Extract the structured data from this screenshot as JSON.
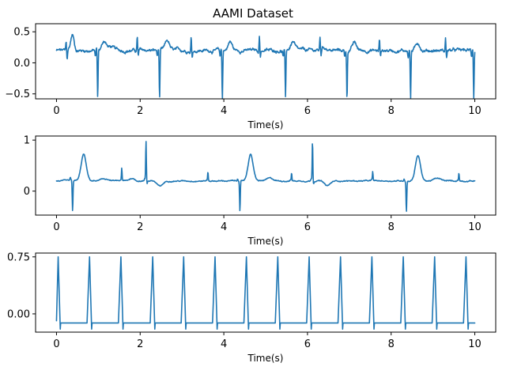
{
  "figure": {
    "title": "AAMI Dataset"
  },
  "colors": {
    "line": "#1f77b4",
    "axes": "#000000",
    "background": "#ffffff"
  },
  "chart_data": [
    {
      "type": "line",
      "title": "AAMI Dataset",
      "xlabel": "Time(s)",
      "ylabel": "",
      "xlim": [
        -0.5,
        10.5
      ],
      "ylim": [
        -0.58,
        0.63
      ],
      "xticks": [
        0,
        2,
        4,
        6,
        8,
        10
      ],
      "yticks": [
        0.5,
        0.0,
        -0.5
      ],
      "ytick_labels": [
        "0.5",
        "0.0",
        "−0.5"
      ],
      "grid": false,
      "baseline": 0.2,
      "noise": 0.03,
      "beats": [
        {
          "t": 0.23,
          "q": -0.01,
          "r": 0.32,
          "s": -0.15
        },
        {
          "t": 0.96,
          "q": -0.1,
          "r": 0.24,
          "s": -0.78
        },
        {
          "t": 1.93,
          "q": -0.02,
          "r": 0.43,
          "s": -0.1
        },
        {
          "t": 2.44,
          "q": -0.1,
          "r": 0.22,
          "s": -0.78
        },
        {
          "t": 3.22,
          "q": -0.02,
          "r": 0.42,
          "s": -0.1
        },
        {
          "t": 3.94,
          "q": -0.1,
          "r": 0.22,
          "s": -0.78
        },
        {
          "t": 4.85,
          "q": -0.02,
          "r": 0.45,
          "s": -0.1
        },
        {
          "t": 5.45,
          "q": -0.1,
          "r": 0.2,
          "s": -0.78
        },
        {
          "t": 6.3,
          "q": -0.02,
          "r": 0.4,
          "s": -0.1
        },
        {
          "t": 6.92,
          "q": -0.1,
          "r": 0.2,
          "s": -0.78
        },
        {
          "t": 7.72,
          "q": -0.02,
          "r": 0.38,
          "s": -0.1
        },
        {
          "t": 8.44,
          "q": -0.1,
          "r": 0.22,
          "s": -0.78
        },
        {
          "t": 9.3,
          "q": -0.02,
          "r": 0.4,
          "s": -0.1
        },
        {
          "t": 9.95,
          "q": -0.1,
          "r": 0.25,
          "s": -0.75
        }
      ],
      "waves": [
        {
          "t": 0.38,
          "a": 0.25,
          "w": 0.04
        },
        {
          "t": 1.14,
          "a": 0.15,
          "w": 0.05
        },
        {
          "t": 2.65,
          "a": 0.15,
          "w": 0.05
        },
        {
          "t": 4.15,
          "a": 0.14,
          "w": 0.05
        },
        {
          "t": 5.65,
          "a": 0.14,
          "w": 0.05
        },
        {
          "t": 7.12,
          "a": 0.12,
          "w": 0.05
        },
        {
          "t": 8.64,
          "a": 0.12,
          "w": 0.05
        },
        {
          "t": 1.3,
          "a": 0.06,
          "w": 0.07
        },
        {
          "t": 6.4,
          "a": 0.05,
          "w": 0.07
        }
      ]
    },
    {
      "type": "line",
      "title": "",
      "xlabel": "Time(s)",
      "ylabel": "",
      "xlim": [
        -0.5,
        10.5
      ],
      "ylim": [
        -0.47,
        1.08
      ],
      "xticks": [
        0,
        2,
        4,
        6,
        8,
        10
      ],
      "yticks": [
        1,
        0
      ],
      "ytick_labels": [
        "1",
        "0"
      ],
      "grid": false,
      "baseline": 0.2,
      "noise": 0.012,
      "beats": [
        {
          "t": 0.36,
          "q": 0.05,
          "r": 0.2,
          "s": -0.6
        },
        {
          "t": 1.56,
          "q": 0.02,
          "r": 0.45,
          "s": 0.0
        },
        {
          "t": 2.14,
          "q": 0.05,
          "r": 1.0,
          "s": -0.05
        },
        {
          "t": 3.62,
          "q": 0.02,
          "r": 0.38,
          "s": 0.0
        },
        {
          "t": 4.36,
          "q": 0.05,
          "r": 0.2,
          "s": -0.6
        },
        {
          "t": 5.62,
          "q": 0.02,
          "r": 0.36,
          "s": 0.0
        },
        {
          "t": 6.12,
          "q": 0.05,
          "r": 1.0,
          "s": -0.05
        },
        {
          "t": 7.56,
          "q": 0.02,
          "r": 0.38,
          "s": 0.0
        },
        {
          "t": 8.34,
          "q": 0.05,
          "r": 0.2,
          "s": -0.6
        },
        {
          "t": 9.62,
          "q": 0.02,
          "r": 0.36,
          "s": 0.0
        }
      ],
      "waves": [
        {
          "t": 0.65,
          "a": 0.52,
          "w": 0.06
        },
        {
          "t": 4.64,
          "a": 0.52,
          "w": 0.06
        },
        {
          "t": 8.64,
          "a": 0.5,
          "w": 0.06
        },
        {
          "t": 1.15,
          "a": 0.04,
          "w": 0.08
        },
        {
          "t": 1.8,
          "a": 0.05,
          "w": 0.06
        },
        {
          "t": 2.4,
          "a": 0.06,
          "w": 0.08
        },
        {
          "t": 5.1,
          "a": 0.05,
          "w": 0.08
        },
        {
          "t": 6.4,
          "a": 0.06,
          "w": 0.08
        },
        {
          "t": 9.1,
          "a": 0.05,
          "w": 0.08
        }
      ],
      "dips": [
        {
          "t": 2.45,
          "a": -0.15,
          "w": 0.08
        },
        {
          "t": 6.45,
          "a": -0.14,
          "w": 0.08
        }
      ]
    },
    {
      "type": "line",
      "title": "",
      "xlabel": "Time(s)",
      "ylabel": "",
      "xlim": [
        -0.5,
        10.5
      ],
      "ylim": [
        -0.24,
        0.8
      ],
      "xticks": [
        0,
        2,
        4,
        6,
        8,
        10
      ],
      "yticks": [
        0.75,
        0.0
      ],
      "ytick_labels": [
        "0.75",
        "0.00"
      ],
      "grid": false,
      "baseline": -0.12,
      "spike_high": 0.75,
      "spike_low": -0.2,
      "spike_times": [
        0.0,
        0.75,
        1.5,
        2.26,
        3.0,
        3.75,
        4.5,
        5.25,
        6.0,
        6.75,
        7.5,
        8.25,
        9.0,
        9.75
      ],
      "x_end": 10.0
    }
  ]
}
